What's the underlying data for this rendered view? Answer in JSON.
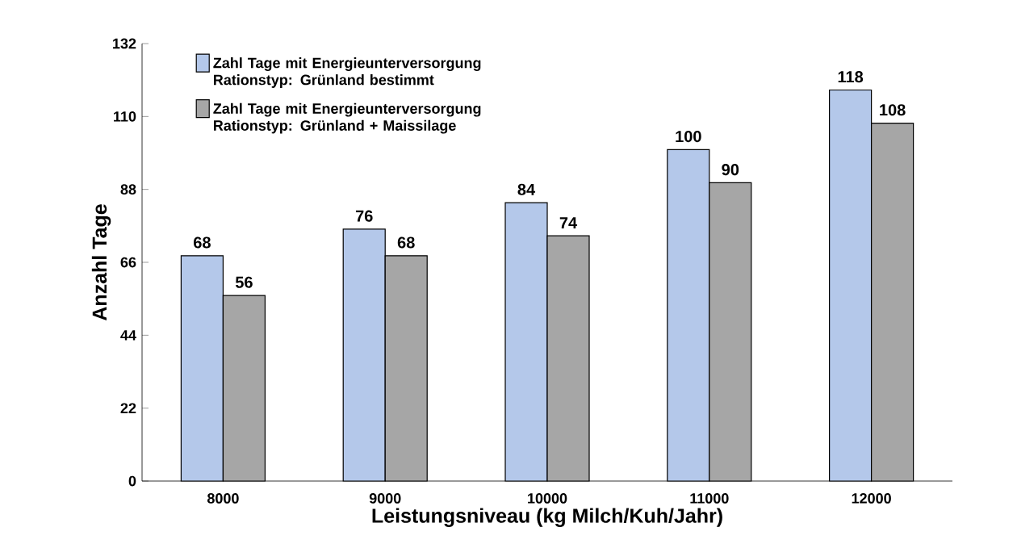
{
  "chart_data": {
    "type": "bar",
    "categories": [
      "8000",
      "9000",
      "10000",
      "11000",
      "12000"
    ],
    "series": [
      {
        "name": "Zahl Tage mit Energieunterversorgung Rationstyp: Grünland bestimmt",
        "color": "#b4c8ea",
        "values": [
          68,
          76,
          84,
          100,
          118
        ]
      },
      {
        "name": "Zahl Tage mit Energieunterversorgung Rationstyp: Grünland + Maissilage",
        "color": "#a6a6a6",
        "values": [
          56,
          68,
          74,
          90,
          108
        ]
      }
    ],
    "xlabel": "Leistungsniveau (kg Milch/Kuh/Jahr)",
    "ylabel": "Anzahl Tage",
    "ylim": [
      0,
      132
    ],
    "yticks": [
      0,
      22,
      44,
      66,
      88,
      110,
      132
    ],
    "data_labels": true,
    "legend": "top left"
  }
}
